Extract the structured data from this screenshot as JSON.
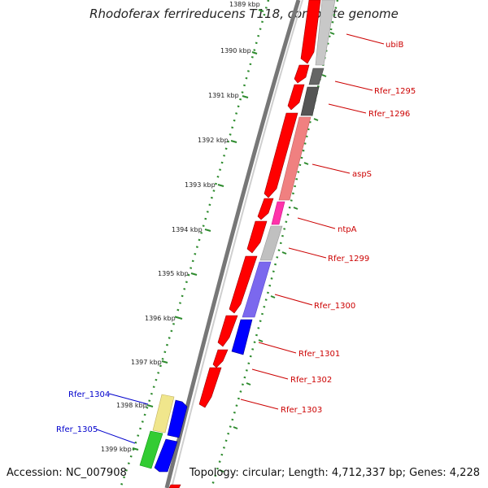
{
  "title": "Rhodoferax ferrireducens T118, complete genome",
  "accession": "Accession: NC_007908",
  "summary": "Topology: circular; Length: 4,712,337 bp; Genes: 4,228",
  "ticks": [
    "1389 kbp",
    "1390 kbp",
    "1391 kbp",
    "1392 kbp",
    "1393 kbp",
    "1394 kbp",
    "1395 kbp",
    "1396 kbp",
    "1397 kbp",
    "1398 kbp",
    "1399 kbp"
  ],
  "genes_right": [
    "ubiB",
    "Rfer_1295",
    "Rfer_1296",
    "aspS",
    "ntpA",
    "Rfer_1299",
    "Rfer_1300",
    "Rfer_1301",
    "Rfer_1302",
    "Rfer_1303"
  ],
  "genes_left": [
    "Rfer_1304",
    "Rfer_1305"
  ],
  "colors": {
    "cds": "#ff0000",
    "label_right": "#cc0000",
    "label_left": "#0000cc",
    "tick": "#2e8b2e",
    "backbone": "#888888"
  }
}
